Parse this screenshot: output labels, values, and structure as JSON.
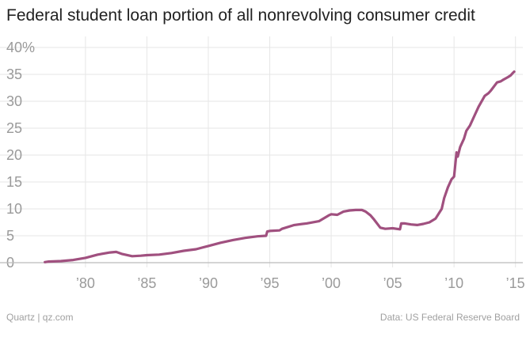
{
  "chart_data": {
    "type": "line",
    "title": "Federal student loan portion of all nonrevolving consumer credit",
    "xlabel": "",
    "ylabel": "",
    "xlim": [
      1975.3,
      2015.6
    ],
    "ylim": [
      0,
      40
    ],
    "grid": true,
    "y_ticks": [
      0,
      5,
      10,
      15,
      20,
      25,
      30,
      35,
      40
    ],
    "y_tick_labels": [
      "0",
      "5",
      "10",
      "15",
      "20",
      "25",
      "30",
      "35",
      "40%"
    ],
    "x_ticks": [
      1980,
      1985,
      1990,
      1995,
      2000,
      2005,
      2010,
      2015
    ],
    "x_tick_labels": [
      "’80",
      "’85",
      "’90",
      "’95",
      "’00",
      "’05",
      "’10",
      "’15"
    ],
    "colors": {
      "line": "#a0507f",
      "grid": "#e6e6e6",
      "baseline": "#bbbbbb",
      "tick_text": "#9a9a9a"
    },
    "series": [
      {
        "x": [
          1976.7,
          1977.0,
          1978.0,
          1979.0,
          1980.0,
          1981.0,
          1982.0,
          1982.5,
          1983.0,
          1983.8,
          1984.5,
          1985.0,
          1986.0,
          1987.0,
          1988.0,
          1989.0,
          1990.0,
          1991.0,
          1992.0,
          1993.0,
          1994.0,
          1994.7,
          1994.8,
          1995.0,
          1995.8,
          1996.0,
          1997.0,
          1998.0,
          1999.0,
          1999.8,
          2000.0,
          2000.5,
          2001.0,
          2001.5,
          2002.0,
          2002.5,
          2002.8,
          2003.2,
          2003.5,
          2004.0,
          2004.4,
          2005.0,
          2005.6,
          2005.7,
          2006.0,
          2006.5,
          2007.0,
          2007.5,
          2008.0,
          2008.5,
          2009.0,
          2009.2,
          2009.5,
          2009.8,
          2010.0,
          2010.2,
          2010.3,
          2010.5,
          2010.8,
          2011.0,
          2011.3,
          2011.7,
          2012.0,
          2012.5,
          2012.8,
          2013.0,
          2013.5,
          2013.8,
          2014.0,
          2014.4,
          2014.6,
          2014.8,
          2014.9
        ],
        "values": [
          0.1,
          0.2,
          0.3,
          0.5,
          0.9,
          1.5,
          1.9,
          2.0,
          1.6,
          1.2,
          1.3,
          1.4,
          1.5,
          1.8,
          2.2,
          2.5,
          3.1,
          3.7,
          4.2,
          4.6,
          4.9,
          5.0,
          5.8,
          5.9,
          6.0,
          6.3,
          7.0,
          7.3,
          7.7,
          8.8,
          9.0,
          8.9,
          9.5,
          9.7,
          9.8,
          9.8,
          9.5,
          8.8,
          8.0,
          6.5,
          6.3,
          6.4,
          6.2,
          7.3,
          7.3,
          7.1,
          7.0,
          7.2,
          7.5,
          8.2,
          10.0,
          12.0,
          14.0,
          15.5,
          16.0,
          20.5,
          19.7,
          21.5,
          23.0,
          24.5,
          25.5,
          27.5,
          29.0,
          31.0,
          31.5,
          32.0,
          33.5,
          33.7,
          34.0,
          34.5,
          34.8,
          35.3,
          35.5
        ]
      }
    ]
  },
  "footer": {
    "credit": "Quartz | qz.com",
    "source": "Data: US Federal Reserve Board"
  }
}
